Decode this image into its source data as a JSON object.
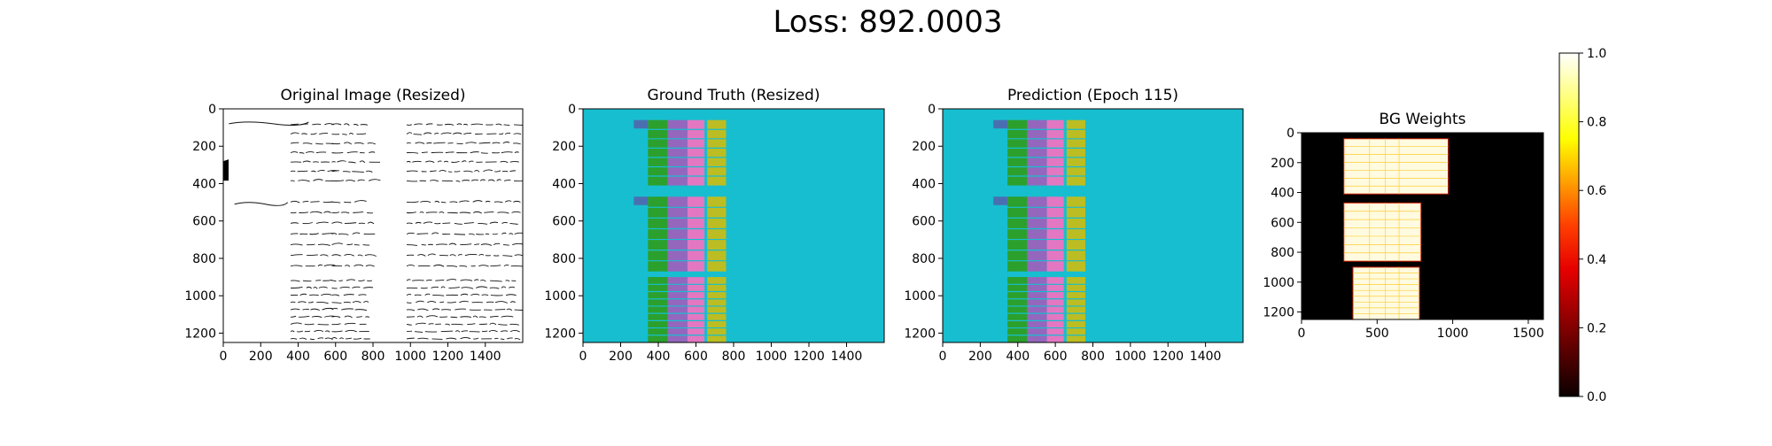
{
  "suptitle": "Loss: 892.0003",
  "colors": {
    "background_cls": "#17becf",
    "col_blue": "#4a6fb0",
    "col_green": "#2ca02c",
    "col_purple": "#9467bd",
    "col_pink": "#e377c2",
    "col_olive": "#bcbd22",
    "weights_bg": "#000000",
    "weights_fg": "#fffbe0"
  },
  "chart_data": [
    {
      "type": "image",
      "title": "Original Image (Resized)",
      "xlim": [
        0,
        1600
      ],
      "ylim": [
        1250,
        0
      ],
      "xticks": [
        0,
        200,
        400,
        600,
        800,
        1000,
        1200,
        1400
      ],
      "yticks": [
        0,
        200,
        400,
        600,
        800,
        1000,
        1200
      ],
      "content": "handwritten ledger table"
    },
    {
      "type": "image",
      "title": "Ground Truth (Resized)",
      "xlim": [
        0,
        1600
      ],
      "ylim": [
        1250,
        0
      ],
      "xticks": [
        0,
        200,
        400,
        600,
        800,
        1000,
        1200,
        1400
      ],
      "yticks": [
        0,
        200,
        400,
        600,
        800,
        1000,
        1200
      ],
      "content": "segmentation mask"
    },
    {
      "type": "image",
      "title": "Prediction (Epoch 115)",
      "xlim": [
        0,
        1600
      ],
      "ylim": [
        1250,
        0
      ],
      "xticks": [
        0,
        200,
        400,
        600,
        800,
        1000,
        1200,
        1400
      ],
      "yticks": [
        0,
        200,
        400,
        600,
        800,
        1000,
        1200
      ],
      "content": "segmentation mask"
    },
    {
      "type": "heatmap",
      "title": "BG Weights",
      "xlim": [
        0,
        1600
      ],
      "ylim": [
        1250,
        0
      ],
      "xticks": [
        0,
        500,
        1000,
        1500
      ],
      "yticks": [
        0,
        200,
        400,
        600,
        800,
        1000,
        1200
      ],
      "colorbar": {
        "range": [
          0.0,
          1.0
        ],
        "ticks": [
          "0.0",
          "0.2",
          "0.4",
          "0.6",
          "0.8",
          "1.0"
        ],
        "colormap": "hot"
      }
    }
  ]
}
